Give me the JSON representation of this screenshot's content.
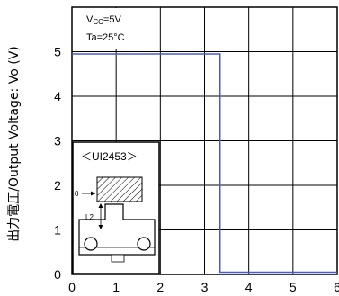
{
  "chart_data": {
    "type": "line",
    "title": "",
    "ylabel": "出力電圧/Output Voltage: Vo (V)",
    "xlabel": "",
    "xlim": [
      0,
      6
    ],
    "ylim": [
      0,
      6
    ],
    "x_ticks": [
      "0",
      "1",
      "2",
      "3",
      "4",
      "5",
      "6"
    ],
    "y_ticks": [
      "0",
      "1",
      "2",
      "3",
      "4",
      "5"
    ],
    "grid": true,
    "conditions": {
      "vcc_main": "V",
      "vcc_sub": "CC",
      "vcc_value": "=5V",
      "ta": "Ta=25°C"
    },
    "series": [
      {
        "color": "#4a5bd0",
        "x": [
          0,
          3.35,
          3.35,
          6
        ],
        "y": [
          4.95,
          4.95,
          0.05,
          0.05
        ]
      }
    ],
    "inset": {
      "part_label": "＜UI2453＞",
      "zero_label": "0",
      "l2_label": "L2"
    }
  }
}
